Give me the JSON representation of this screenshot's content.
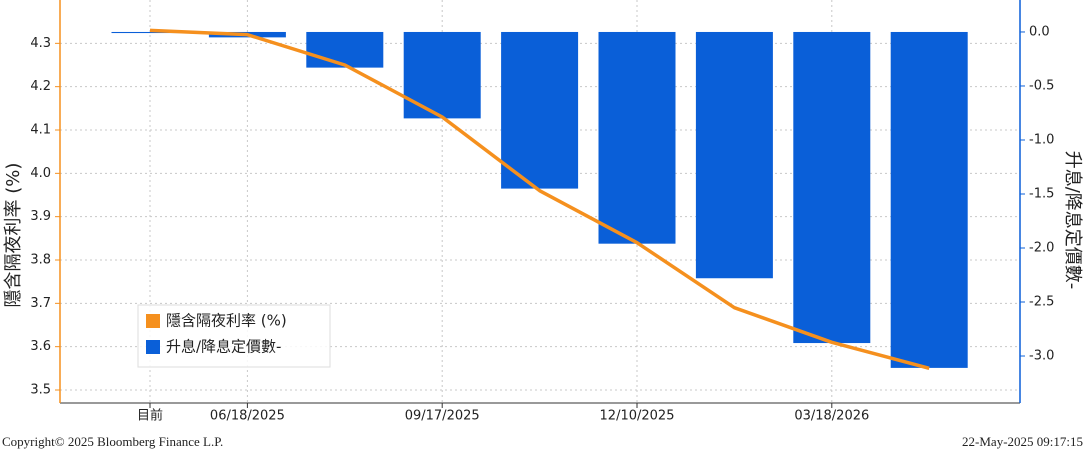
{
  "chart_data": {
    "type": "bar-line",
    "categories": [
      "目前",
      "06/18/2025",
      null,
      "09/17/2025",
      null,
      "12/10/2025",
      null,
      "03/18/2026",
      null
    ],
    "series": [
      {
        "name": "隱含隔夜利率 (%)",
        "type": "line",
        "color": "#f5901e",
        "axis": "y",
        "values": [
          4.33,
          4.32,
          4.25,
          4.13,
          3.96,
          3.84,
          3.69,
          3.61,
          3.55
        ]
      },
      {
        "name": "升息/降息定價數-",
        "type": "bar",
        "color": "#0a5fd8",
        "axis": "y2",
        "values": [
          -0.01,
          -0.05,
          -0.33,
          -0.8,
          -1.45,
          -1.96,
          -2.28,
          -2.88,
          -3.11
        ]
      }
    ],
    "ylabel": "隱含隔夜利率 (%)",
    "y2label": "升息/降息定價數-",
    "ylim": [
      3.47,
      4.4
    ],
    "yticks": [
      3.5,
      3.6,
      3.7,
      3.8,
      3.9,
      {
        "value": 4.0,
        "label": "4.0"
      },
      4.1,
      4.2,
      4.3
    ],
    "y2lim": [
      -3.435,
      0.296
    ],
    "y2ticks": [
      {
        "value": 0,
        "label": "0.0"
      },
      -0.5,
      {
        "value": -1,
        "label": "-1.0"
      },
      -1.5,
      {
        "value": -2,
        "label": "-2.0"
      },
      -2.5,
      {
        "value": -3,
        "label": "-3.0"
      }
    ],
    "grid": true,
    "legend": "lower left",
    "footer_left": "Copyright© 2025 Bloomberg Finance L.P.",
    "footer_right": "22-May-2025 09:17:15"
  }
}
